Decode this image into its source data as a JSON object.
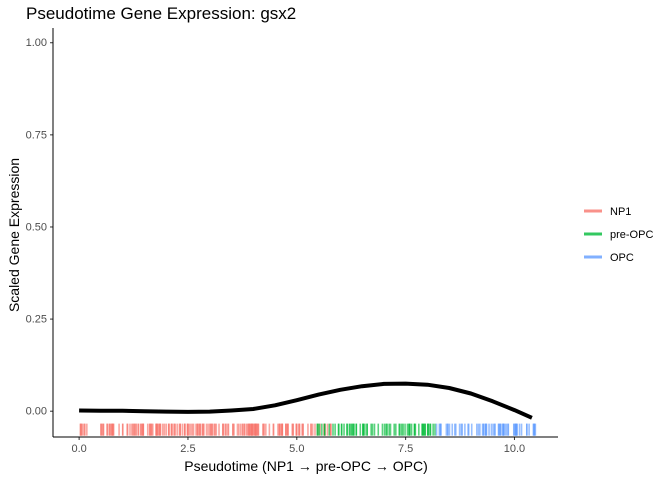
{
  "chart_data": {
    "type": "line",
    "title": "Pseudotime Gene Expression: gsx2",
    "xlabel": "Pseudotime (NP1 → pre-OPC → OPC)",
    "ylabel": "Scaled Gene Expression",
    "xlim": [
      -0.6,
      11.0
    ],
    "ylim": [
      -0.07,
      1.04
    ],
    "x_ticks": [
      0.0,
      2.5,
      5.0,
      7.5,
      10.0
    ],
    "x_tick_labels": [
      "0.0",
      "2.5",
      "5.0",
      "7.5",
      "10.0"
    ],
    "y_ticks": [
      0.0,
      0.25,
      0.5,
      0.75,
      1.0
    ],
    "y_tick_labels": [
      "0.00",
      "0.25",
      "0.50",
      "0.75",
      "1.00"
    ],
    "grid": false,
    "legend_position": "right",
    "legend": [
      {
        "label": "NP1",
        "color": "#F8766D"
      },
      {
        "label": "pre-OPC",
        "color": "#00BA38"
      },
      {
        "label": "OPC",
        "color": "#619CFF"
      }
    ],
    "smooth_line": {
      "color": "#000000",
      "x": [
        0.0,
        0.5,
        1.0,
        1.5,
        2.0,
        2.5,
        3.0,
        3.5,
        4.0,
        4.5,
        5.0,
        5.5,
        6.0,
        6.5,
        7.0,
        7.5,
        8.0,
        8.5,
        9.0,
        9.5,
        10.0,
        10.4
      ],
      "y": [
        0.002,
        0.0015,
        0.001,
        0.0,
        -0.001,
        -0.002,
        -0.001,
        0.002,
        0.006,
        0.016,
        0.03,
        0.045,
        0.058,
        0.068,
        0.074,
        0.075,
        0.072,
        0.063,
        0.048,
        0.027,
        0.003,
        -0.018
      ]
    },
    "rug": {
      "y": -0.05,
      "groups": [
        {
          "label": "NP1",
          "color": "#F8766D",
          "range": [
            0.0,
            5.8
          ],
          "count": 200
        },
        {
          "label": "pre-OPC",
          "color": "#00BA38",
          "range": [
            5.4,
            8.2
          ],
          "count": 70
        },
        {
          "label": "OPC",
          "color": "#619CFF",
          "range": [
            8.2,
            10.5
          ],
          "count": 65
        }
      ]
    }
  }
}
